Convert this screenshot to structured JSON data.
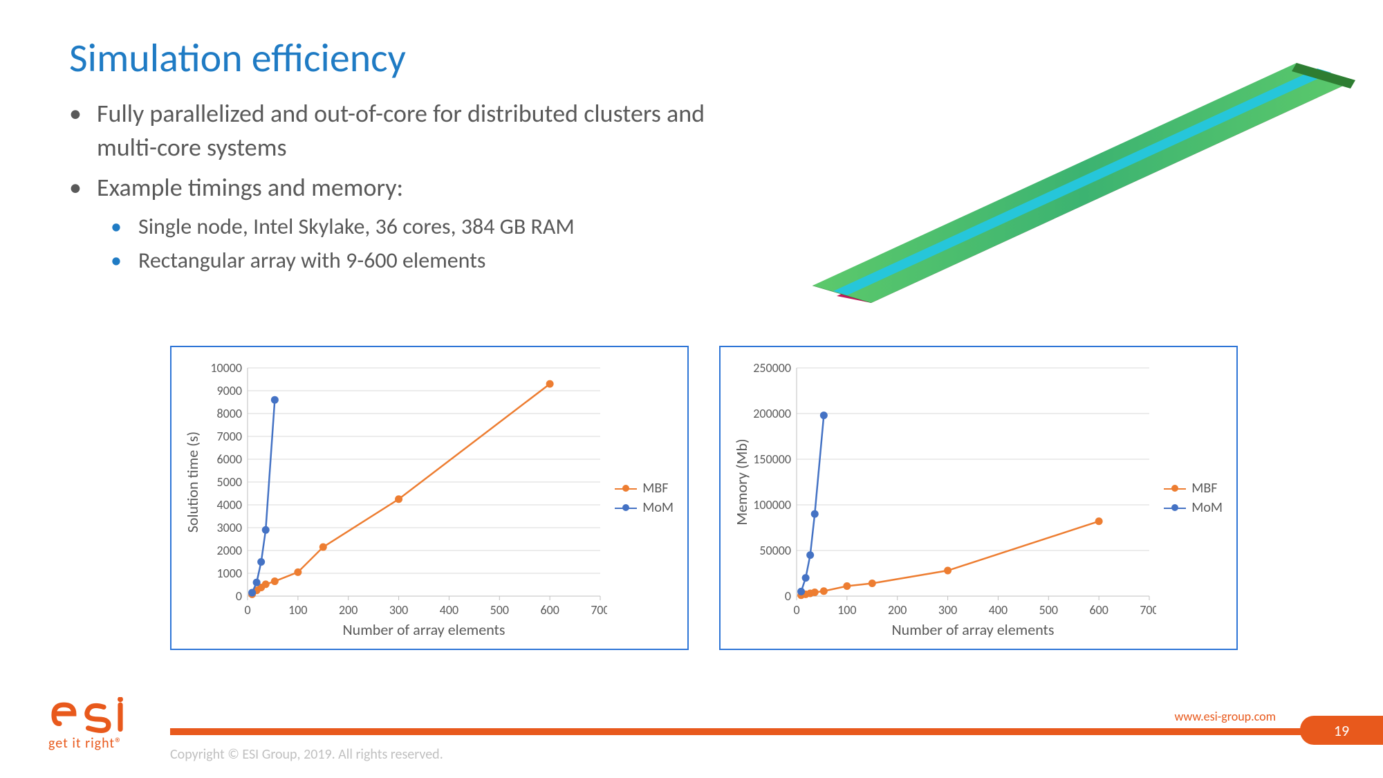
{
  "title": "Simulation efficiency",
  "bullets": {
    "b1": "Fully parallelized and out-of-core for distributed clusters and multi-core systems",
    "b2": "Example timings and memory:",
    "s1": "Single node, Intel Skylake, 36 cores, 384 GB RAM",
    "s2": "Rectangular array with 9-600 elements"
  },
  "colors": {
    "mbf": "#ed7d31",
    "mom": "#4472c4",
    "grid": "#d9d9d9",
    "axis": "#bfbfbf",
    "panel_border": "#2e75d6",
    "text": "#595959"
  },
  "legend": {
    "mbf": "MBF",
    "mom": "MoM"
  },
  "chartA": {
    "type": "line",
    "ylabel": "Solution time (s)",
    "xlabel": "Number of array elements",
    "xlim": [
      0,
      700
    ],
    "xtick_step": 100,
    "ylim": [
      0,
      10000
    ],
    "ytick_step": 1000,
    "series": {
      "mbf": [
        [
          9,
          80
        ],
        [
          18,
          250
        ],
        [
          27,
          380
        ],
        [
          36,
          520
        ],
        [
          54,
          650
        ],
        [
          100,
          1050
        ],
        [
          150,
          2150
        ],
        [
          300,
          4250
        ],
        [
          600,
          9300
        ]
      ],
      "mom": [
        [
          9,
          150
        ],
        [
          18,
          600
        ],
        [
          27,
          1500
        ],
        [
          36,
          2900
        ],
        [
          54,
          8600
        ]
      ]
    }
  },
  "chartB": {
    "type": "line",
    "ylabel": "Memory (Mb)",
    "xlabel": "Number of array elements",
    "xlim": [
      0,
      700
    ],
    "xtick_step": 100,
    "ylim": [
      0,
      250000
    ],
    "ytick_step": 50000,
    "series": {
      "mbf": [
        [
          9,
          1000
        ],
        [
          18,
          2000
        ],
        [
          27,
          3000
        ],
        [
          36,
          4200
        ],
        [
          54,
          5500
        ],
        [
          100,
          11000
        ],
        [
          150,
          14000
        ],
        [
          300,
          28000
        ],
        [
          600,
          82000
        ]
      ],
      "mom": [
        [
          9,
          5000
        ],
        [
          18,
          20000
        ],
        [
          27,
          45000
        ],
        [
          36,
          90000
        ],
        [
          54,
          198000
        ]
      ]
    }
  },
  "footer": {
    "url": "www.esi-group.com",
    "page": "19",
    "copyright": "Copyright © ESI Group, 2019. All rights reserved.",
    "tagline": "get it right®"
  }
}
